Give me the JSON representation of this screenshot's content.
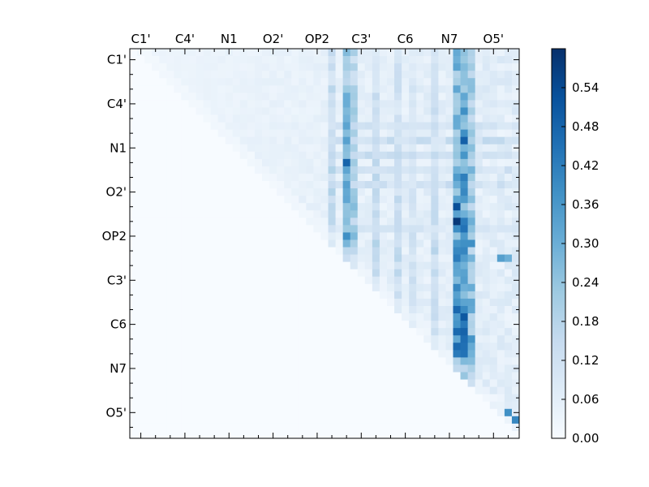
{
  "chart_data": {
    "type": "heatmap",
    "n": 53,
    "seed": 7,
    "x_tick_labels": [
      "C1'",
      "C4'",
      "N1",
      "O2'",
      "OP2",
      "C3'",
      "C6",
      "N7",
      "O5'"
    ],
    "y_tick_labels": [
      "C1'",
      "C4'",
      "N1",
      "O2'",
      "OP2",
      "C3'",
      "C6",
      "N7",
      "O5'"
    ],
    "tick_label_every": 6,
    "minor_tick_every": 2,
    "colorbar": {
      "min": 0.0,
      "max": 0.6,
      "ticks": [
        "0.00",
        "0.06",
        "0.12",
        "0.18",
        "0.24",
        "0.30",
        "0.36",
        "0.42",
        "0.48",
        "0.54"
      ]
    },
    "colormap": [
      "#f7fbff",
      "#deebf7",
      "#c6dbef",
      "#9ecae1",
      "#6baed6",
      "#4292c6",
      "#2171b5",
      "#08519c",
      "#08306b"
    ],
    "hot_columns": {
      "44": 0.46,
      "45": 0.5,
      "46": 0.34,
      "29": 0.36,
      "30": 0.26,
      "27": 0.2,
      "33": 0.18,
      "36": 0.17,
      "41": 0.19,
      "38": 0.14
    },
    "hot_rows": {
      "10": 0.12,
      "12": 0.14,
      "14": 0.14,
      "16": 0.12,
      "18": 0.13,
      "24": 0.1
    },
    "hotspots": [
      {
        "r": 23,
        "c": 44,
        "v": 0.58
      },
      {
        "r": 21,
        "c": 44,
        "v": 0.53
      },
      {
        "r": 15,
        "c": 29,
        "v": 0.48
      },
      {
        "r": 12,
        "c": 45,
        "v": 0.49
      },
      {
        "r": 50,
        "c": 52,
        "v": 0.4
      },
      {
        "r": 49,
        "c": 51,
        "v": 0.38
      },
      {
        "r": 26,
        "c": 46,
        "v": 0.38
      },
      {
        "r": 39,
        "c": 46,
        "v": 0.37
      },
      {
        "r": 28,
        "c": 50,
        "v": 0.34
      },
      {
        "r": 28,
        "c": 51,
        "v": 0.3
      }
    ]
  }
}
